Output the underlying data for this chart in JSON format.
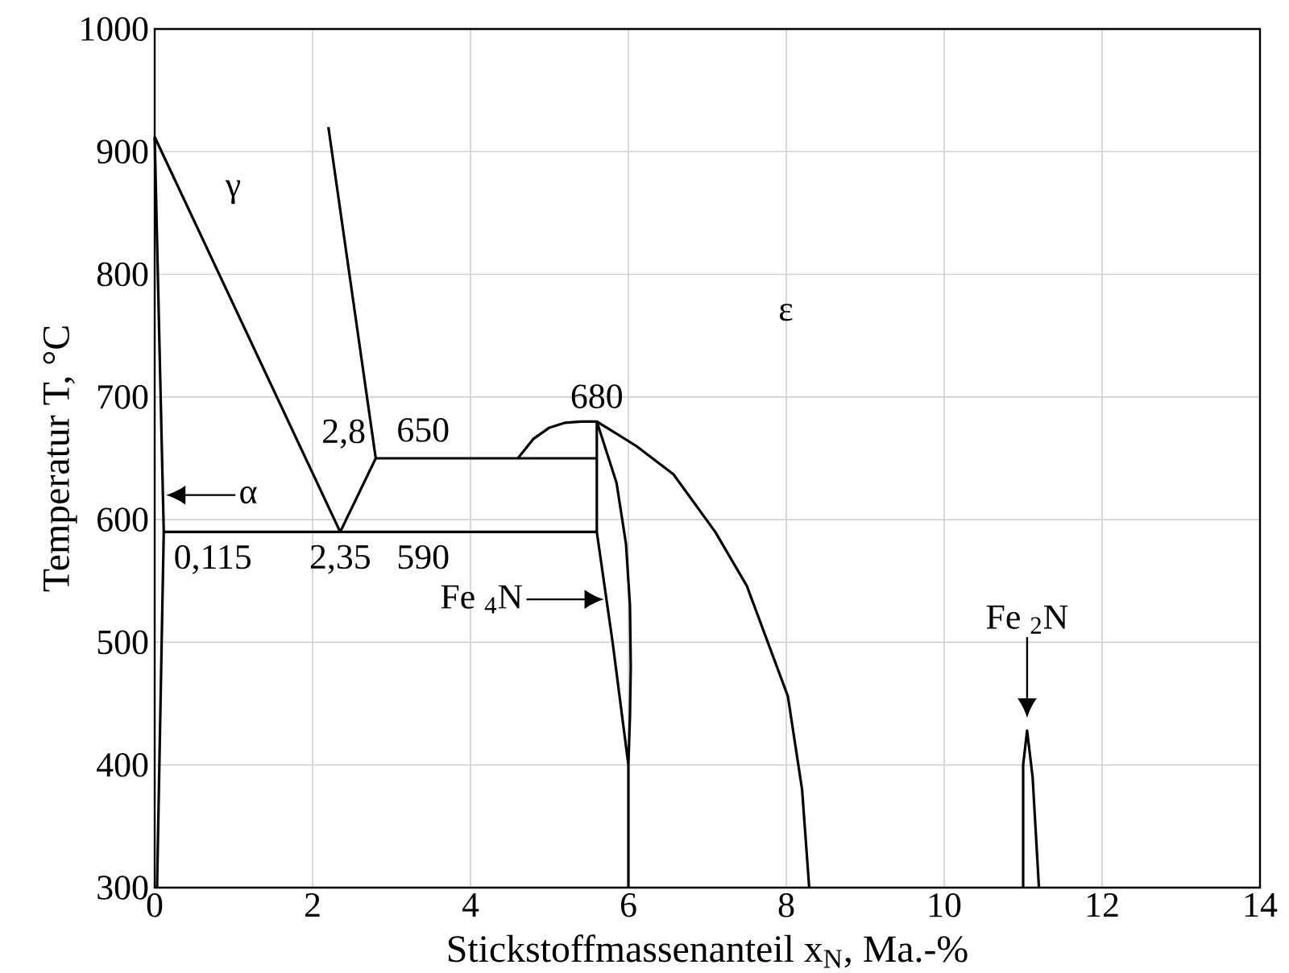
{
  "chart_data": {
    "type": "line",
    "xlabel": "Stickstoffmassenanteil x$_{N}$, Ma.-%",
    "ylabel": "Temperatur T, °C",
    "xlim": [
      0,
      14
    ],
    "xticks": [
      0,
      2,
      4,
      6,
      8,
      10,
      12,
      14
    ],
    "ylim": [
      300,
      1000
    ],
    "yticks": [
      300,
      400,
      500,
      600,
      700,
      800,
      900,
      1000
    ],
    "grid": true,
    "series": [
      {
        "color": "#000000",
        "x": [
          0,
          0.115,
          0.03
        ],
        "values": [
          912,
          590,
          300
        ]
      },
      {
        "color": "#000000",
        "x": [
          0,
          2.35
        ],
        "values": [
          912,
          590
        ]
      },
      {
        "color": "#000000",
        "x": [
          2.35,
          2.8,
          2.2
        ],
        "values": [
          590,
          650,
          920
        ]
      },
      {
        "color": "#000000",
        "x": [
          0.115,
          5.6
        ],
        "values": [
          590,
          590
        ]
      },
      {
        "color": "#000000",
        "x": [
          2.8,
          5.6
        ],
        "values": [
          650,
          650
        ]
      },
      {
        "color": "#000000",
        "x": [
          4.6,
          4.8,
          5.0,
          5.2,
          5.4,
          5.6
        ],
        "values": [
          650,
          666,
          675,
          679,
          680,
          680
        ]
      },
      {
        "color": "#000000",
        "x": [
          6.0,
          6.0,
          5.8,
          5.6,
          5.6,
          5.85,
          5.97,
          6.02,
          6.03,
          6.02,
          6.0
        ],
        "values": [
          300,
          400,
          500,
          590,
          680,
          630,
          580,
          530,
          480,
          440,
          400
        ]
      },
      {
        "color": "#000000",
        "x": [
          5.6,
          6.1,
          6.57,
          7.1,
          7.5,
          8.02,
          8.2,
          8.29
        ],
        "values": [
          680,
          660,
          637,
          590,
          546,
          456,
          380,
          300
        ]
      },
      {
        "color": "#000000",
        "x": [
          11.0,
          11.0,
          11.05,
          11.12,
          11.2
        ],
        "values": [
          300,
          400,
          428,
          390,
          300
        ]
      }
    ],
    "annotations": [
      "γ",
      "ε",
      {
        "text": "680",
        "x": 5.6,
        "y": 680
      },
      {
        "text": "650",
        "x": 3.4,
        "y": 650
      },
      {
        "text": "590",
        "x": 3.4,
        "y": 590
      },
      {
        "text": "2,8",
        "x": 2.8,
        "y": 650
      },
      {
        "text": "2,35",
        "x": 2.35,
        "y": 590
      },
      {
        "text": "0,115",
        "x": 0.115,
        "y": 590
      },
      {
        "text": "α",
        "x": 0.104,
        "y": 620
      },
      {
        "text": "Fe $_{4}$N",
        "x": 5.73,
        "y": 535
      },
      {
        "text": "Fe $_{2}$N",
        "x": 11.05,
        "y": 428
      }
    ]
  }
}
